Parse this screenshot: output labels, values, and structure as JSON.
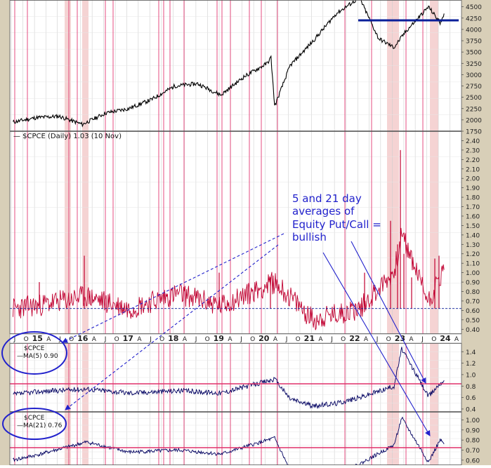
{
  "chart_data": [
    {
      "type": "line",
      "panel": "price",
      "ylim": [
        1750,
        4650
      ],
      "yticks": [
        "4500",
        "4250",
        "4000",
        "3750",
        "3500",
        "3250",
        "3000",
        "2750",
        "2500",
        "2250",
        "2000",
        "1750"
      ],
      "reference_line": 4200,
      "x": [
        "2014-07",
        "2015-01",
        "2015-07",
        "2016-01",
        "2016-07",
        "2017-01",
        "2017-07",
        "2018-01",
        "2018-07",
        "2019-01",
        "2019-07",
        "2020-01",
        "2020-02",
        "2020-03",
        "2020-07",
        "2021-01",
        "2021-07",
        "2022-01",
        "2022-06",
        "2022-10",
        "2023-01",
        "2023-07",
        "2023-10",
        "2023-11"
      ],
      "series": [
        {
          "values": [
            1950,
            2050,
            2080,
            1900,
            2150,
            2250,
            2450,
            2750,
            2800,
            2550,
            2950,
            3250,
            3380,
            2300,
            3200,
            3750,
            4350,
            4700,
            3800,
            3600,
            3950,
            4500,
            4150,
            4350
          ]
        }
      ]
    },
    {
      "type": "line",
      "panel": "cpce",
      "title": "$CPCE (Daily) 1.03 (10 Nov)",
      "ylim": [
        0.35,
        2.5
      ],
      "yticks": [
        "2.40",
        "2.30",
        "2.20",
        "2.10",
        "2.00",
        "1.90",
        "1.80",
        "1.70",
        "1.60",
        "1.50",
        "1.40",
        "1.30",
        "1.20",
        "1.10",
        "1.00",
        "0.90",
        "0.80",
        "0.70",
        "0.60",
        "0.50",
        "0.40"
      ],
      "reference_line": 0.62,
      "xticks": [
        "J",
        "O",
        "15",
        "A",
        "J",
        "O",
        "16",
        "A",
        "J",
        "O",
        "17",
        "A",
        "J",
        "O",
        "18",
        "A",
        "J",
        "O",
        "19",
        "A",
        "J",
        "O",
        "20",
        "A",
        "J",
        "O",
        "21",
        "A",
        "J",
        "O",
        "22",
        "A",
        "J",
        "O",
        "23",
        "A",
        "J",
        "O",
        "24",
        "A"
      ],
      "annotation": {
        "lines": [
          "5 and 21 day",
          "averages of",
          "Equity Put/Call =",
          "bullish"
        ]
      },
      "series": [
        {
          "x": [
            "2014-07",
            "2015-01",
            "2016-02",
            "2017-01",
            "2018-02",
            "2019-01",
            "2020-03",
            "2021-01",
            "2022-01",
            "2022-10",
            "2022-12",
            "2023-07",
            "2023-10",
            "2023-11"
          ],
          "values": [
            0.62,
            0.65,
            0.75,
            0.62,
            0.78,
            0.65,
            0.9,
            0.5,
            0.62,
            1.0,
            1.4,
            0.7,
            0.95,
            1.03
          ]
        }
      ]
    },
    {
      "type": "line",
      "panel": "ma5",
      "labels": [
        "$CPCE",
        "MA(5) 0.90"
      ],
      "ylim": [
        0.35,
        1.55
      ],
      "yticks": [
        "1.4",
        "1.2",
        "1.0",
        "0.8",
        "0.6",
        "0.4"
      ],
      "reference_line": 0.8,
      "series": [
        {
          "x": [
            "2014-07",
            "2015-01",
            "2016-02",
            "2017-01",
            "2018-02",
            "2019-01",
            "2020-03",
            "2020-07",
            "2021-01",
            "2021-07",
            "2022-01",
            "2022-10",
            "2022-12",
            "2023-07",
            "2023-10",
            "2023-11"
          ],
          "values": [
            0.65,
            0.7,
            0.75,
            0.68,
            0.72,
            0.68,
            0.92,
            0.58,
            0.45,
            0.5,
            0.6,
            0.8,
            1.45,
            0.62,
            0.85,
            0.9
          ]
        }
      ]
    },
    {
      "type": "line",
      "panel": "ma21",
      "labels": [
        "$CPCE",
        "MA(21) 0.76"
      ],
      "ylim": [
        0.55,
        1.08
      ],
      "yticks": [
        "1.00",
        "0.90",
        "0.80",
        "0.70",
        "0.60"
      ],
      "reference_line": 0.72,
      "series": [
        {
          "x": [
            "2014-07",
            "2015-01",
            "2016-02",
            "2017-01",
            "2018-02",
            "2019-01",
            "2020-03",
            "2020-07",
            "2021-01",
            "2021-07",
            "2022-01",
            "2022-10",
            "2022-12",
            "2023-07",
            "2023-10",
            "2023-11"
          ],
          "values": [
            0.6,
            0.65,
            0.78,
            0.68,
            0.7,
            0.66,
            0.82,
            0.5,
            0.42,
            0.45,
            0.56,
            0.75,
            1.02,
            0.58,
            0.8,
            0.76
          ]
        }
      ]
    }
  ],
  "colors": {
    "price_line": "#000000",
    "cpce_line": "#c00030",
    "ma_line": "#000060",
    "ref_line_price": "#0a1f9a",
    "ref_line_ma": "#e0306a",
    "vertical_markers": "#e0306a",
    "shaded_band": "#f2c4c4",
    "annotation": "#2222cc",
    "grid": "#cfcfcf",
    "frame": "#d8cfb8"
  }
}
